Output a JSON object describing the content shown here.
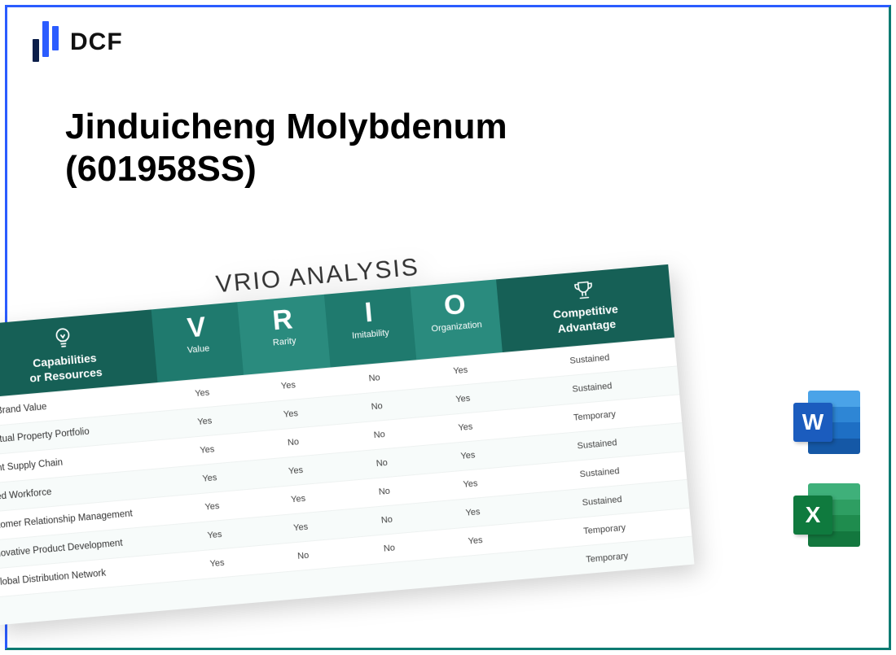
{
  "brand": {
    "text": "DCF",
    "bar_colors": [
      "#0b1e4a",
      "#2b5cff",
      "#2b5cff"
    ]
  },
  "frame_colors": {
    "left_top": "#2b5cff",
    "right_bottom": "#0d7a72"
  },
  "title_line1": "Jinduicheng Molybdenum",
  "title_line2": "(601958SS)",
  "table": {
    "title": "VRIO ANALYSIS",
    "header_bg_dark": "#166056",
    "header_bg_mid": "#1f7a6e",
    "header_bg_light": "#2a8b7e",
    "cap_header": "Capabilities\nor Resources",
    "vrio": [
      {
        "big": "V",
        "sub": "Value"
      },
      {
        "big": "R",
        "sub": "Rarity"
      },
      {
        "big": "I",
        "sub": "Imitability"
      },
      {
        "big": "O",
        "sub": "Organization"
      }
    ],
    "adv_header": "Competitive\nAdvantage",
    "rows": [
      {
        "label": "ong Brand Value",
        "v": "Yes",
        "r": "Yes",
        "i": "No",
        "o": "Yes",
        "adv": "Sustained"
      },
      {
        "label": "ellectual Property Portfolio",
        "v": "Yes",
        "r": "Yes",
        "i": "No",
        "o": "Yes",
        "adv": "Sustained"
      },
      {
        "label": "icient Supply Chain",
        "v": "Yes",
        "r": "No",
        "i": "No",
        "o": "Yes",
        "adv": "Temporary"
      },
      {
        "label": "killed Workforce",
        "v": "Yes",
        "r": "Yes",
        "i": "No",
        "o": "Yes",
        "adv": "Sustained"
      },
      {
        "label": "ustomer Relationship Management",
        "v": "Yes",
        "r": "Yes",
        "i": "No",
        "o": "Yes",
        "adv": "Sustained"
      },
      {
        "label": "nnovative Product Development",
        "v": "Yes",
        "r": "Yes",
        "i": "No",
        "o": "Yes",
        "adv": "Sustained"
      },
      {
        "label": "Global Distribution Network",
        "v": "Yes",
        "r": "No",
        "i": "No",
        "o": "Yes",
        "adv": "Temporary"
      },
      {
        "label": "",
        "v": "",
        "r": "",
        "i": "",
        "o": "",
        "adv": "Temporary"
      }
    ]
  },
  "file_icons": {
    "word": {
      "letter": "W",
      "tile": "#1b5cbe",
      "bands": [
        "#4aa3e8",
        "#2e86d5",
        "#1e6fc4",
        "#1558a6"
      ]
    },
    "excel": {
      "letter": "X",
      "tile": "#0f7a3e",
      "bands": [
        "#3fb07a",
        "#2e9e62",
        "#1f8c4e",
        "#13773e"
      ]
    }
  }
}
